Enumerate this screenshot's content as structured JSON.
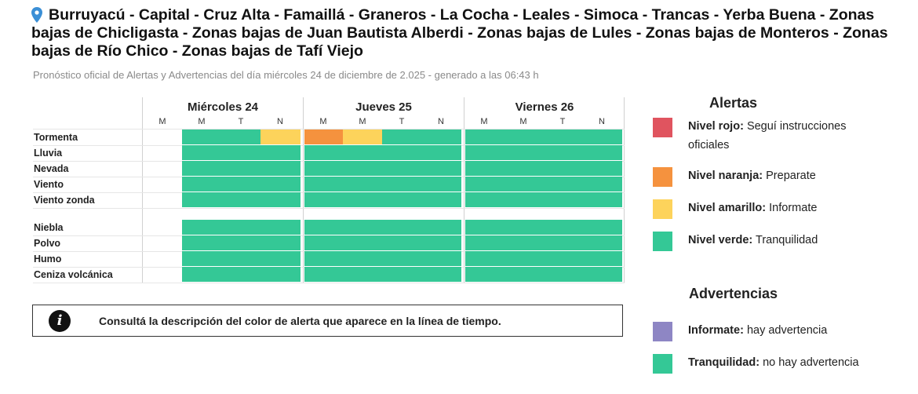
{
  "header": {
    "title": "Burruyacú - Capital - Cruz Alta - Famaillá - Graneros - La Cocha - Leales - Simoca - Trancas - Yerba Buena - Zonas bajas de Chicligasta - Zonas bajas de Juan Bautista Alberdi - Zonas bajas de Lules - Zonas bajas de Monteros - Zonas bajas de Río Chico - Zonas bajas de Tafí Viejo",
    "subtitle": "Pronóstico oficial de Alertas y Advertencias del día miércoles 24 de diciembre de 2.025 - generado a las 06:43 h",
    "pin_icon": "location-pin-icon"
  },
  "timeline": {
    "days": [
      {
        "label": "Miércoles 24"
      },
      {
        "label": "Jueves 25"
      },
      {
        "label": "Viernes 26"
      }
    ],
    "slots": [
      "M",
      "M",
      "T",
      "N"
    ],
    "rows": [
      {
        "label": "Tormenta",
        "cells": [
          "none",
          "green",
          "green",
          "yellow",
          "orange",
          "yellow",
          "green",
          "green",
          "green",
          "green",
          "green",
          "green"
        ]
      },
      {
        "label": "Lluvia",
        "cells": [
          "none",
          "green",
          "green",
          "green",
          "green",
          "green",
          "green",
          "green",
          "green",
          "green",
          "green",
          "green"
        ]
      },
      {
        "label": "Nevada",
        "cells": [
          "none",
          "green",
          "green",
          "green",
          "green",
          "green",
          "green",
          "green",
          "green",
          "green",
          "green",
          "green"
        ]
      },
      {
        "label": "Viento",
        "cells": [
          "none",
          "green",
          "green",
          "green",
          "green",
          "green",
          "green",
          "green",
          "green",
          "green",
          "green",
          "green"
        ]
      },
      {
        "label": "Viento zonda",
        "cells": [
          "none",
          "green",
          "green",
          "green",
          "green",
          "green",
          "green",
          "green",
          "green",
          "green",
          "green",
          "green"
        ]
      },
      {
        "label": "Niebla",
        "cells": [
          "none",
          "green",
          "green",
          "green",
          "green",
          "green",
          "green",
          "green",
          "green",
          "green",
          "green",
          "green"
        ]
      },
      {
        "label": "Polvo",
        "cells": [
          "none",
          "green",
          "green",
          "green",
          "green",
          "green",
          "green",
          "green",
          "green",
          "green",
          "green",
          "green"
        ]
      },
      {
        "label": "Humo",
        "cells": [
          "none",
          "green",
          "green",
          "green",
          "green",
          "green",
          "green",
          "green",
          "green",
          "green",
          "green",
          "green"
        ]
      },
      {
        "label": "Ceniza volcánica",
        "cells": [
          "none",
          "green",
          "green",
          "green",
          "green",
          "green",
          "green",
          "green",
          "green",
          "green",
          "green",
          "green"
        ]
      }
    ]
  },
  "colors": {
    "red": "#e0545f",
    "orange": "#f5923e",
    "yellow": "#fdd35b",
    "green": "#34c896",
    "violet": "#8e86c4"
  },
  "info": {
    "icon": "info-icon",
    "text": "Consultá la descripción del color de alerta que aparece en la línea de tiempo."
  },
  "legend": {
    "alertas_title": "Alertas",
    "alertas": [
      {
        "color": "#e0545f",
        "name": "Nivel rojo:",
        "desc": "Seguí instrucciones oficiales"
      },
      {
        "color": "#f5923e",
        "name": "Nivel naranja:",
        "desc": "Preparate"
      },
      {
        "color": "#fdd35b",
        "name": "Nivel amarillo:",
        "desc": "Informate"
      },
      {
        "color": "#34c896",
        "name": "Nivel verde:",
        "desc": "Tranquilidad"
      }
    ],
    "advertencias_title": "Advertencias",
    "advertencias": [
      {
        "color": "#8e86c4",
        "name": "Informate:",
        "desc": "hay advertencia"
      },
      {
        "color": "#34c896",
        "name": "Tranquilidad:",
        "desc": "no hay advertencia"
      }
    ]
  }
}
